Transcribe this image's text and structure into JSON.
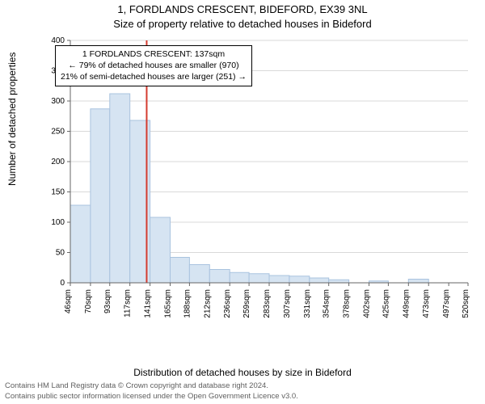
{
  "title_main": "1, FORDLANDS CRESCENT, BIDEFORD, EX39 3NL",
  "title_sub": "Size of property relative to detached houses in Bideford",
  "ylabel": "Number of detached properties",
  "xlabel": "Distribution of detached houses by size in Bideford",
  "footer_line1": "Contains HM Land Registry data © Crown copyright and database right 2024.",
  "footer_line2": "Contains public sector information licensed under the Open Government Licence v3.0.",
  "annotation": {
    "line1": "1 FORDLANDS CRESCENT: 137sqm",
    "line2": "← 79% of detached houses are smaller (970)",
    "line3": "21% of semi-detached houses are larger (251) →"
  },
  "chart": {
    "type": "histogram",
    "background_color": "#ffffff",
    "grid_color": "#d9d9d9",
    "axis_color": "#666666",
    "bar_fill": "#d6e4f2",
    "bar_stroke": "#a9c3df",
    "marker_line_color": "#d43b2f",
    "marker_line_width": 2,
    "marker_x": 137,
    "ylim": [
      0,
      400
    ],
    "ytick_step": 50,
    "xticks": [
      46,
      70,
      93,
      117,
      141,
      165,
      188,
      212,
      236,
      259,
      283,
      307,
      331,
      354,
      378,
      402,
      425,
      449,
      473,
      497,
      520
    ],
    "xtick_suffix": "sqm",
    "bars": [
      {
        "x0": 46,
        "x1": 70,
        "y": 128
      },
      {
        "x0": 70,
        "x1": 93,
        "y": 287
      },
      {
        "x0": 93,
        "x1": 117,
        "y": 312
      },
      {
        "x0": 117,
        "x1": 141,
        "y": 268
      },
      {
        "x0": 141,
        "x1": 165,
        "y": 108
      },
      {
        "x0": 165,
        "x1": 188,
        "y": 42
      },
      {
        "x0": 188,
        "x1": 212,
        "y": 30
      },
      {
        "x0": 212,
        "x1": 236,
        "y": 22
      },
      {
        "x0": 236,
        "x1": 259,
        "y": 17
      },
      {
        "x0": 259,
        "x1": 283,
        "y": 15
      },
      {
        "x0": 283,
        "x1": 307,
        "y": 12
      },
      {
        "x0": 307,
        "x1": 331,
        "y": 11
      },
      {
        "x0": 331,
        "x1": 354,
        "y": 8
      },
      {
        "x0": 354,
        "x1": 378,
        "y": 5
      },
      {
        "x0": 378,
        "x1": 402,
        "y": 0
      },
      {
        "x0": 402,
        "x1": 425,
        "y": 3
      },
      {
        "x0": 425,
        "x1": 449,
        "y": 0
      },
      {
        "x0": 449,
        "x1": 473,
        "y": 6
      },
      {
        "x0": 473,
        "x1": 497,
        "y": 0
      },
      {
        "x0": 497,
        "x1": 520,
        "y": 0
      }
    ],
    "label_fontsize": 12,
    "tick_fontsize": 10,
    "title_fontsize": 13
  }
}
